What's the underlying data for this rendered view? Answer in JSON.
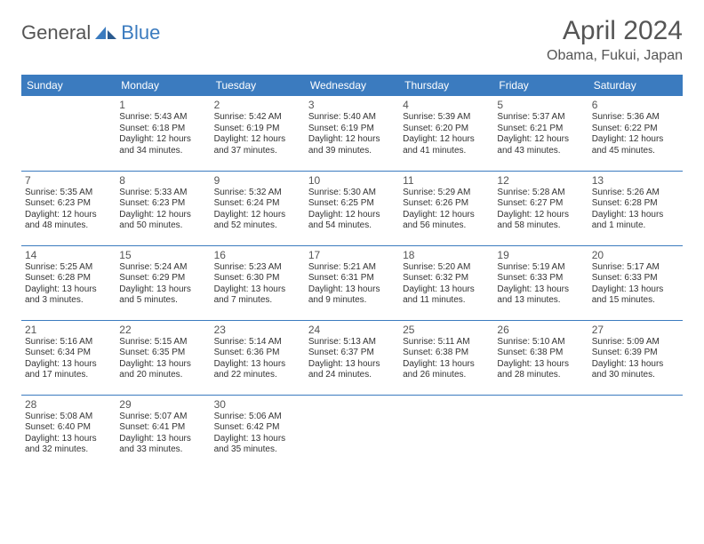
{
  "brand": {
    "part1": "General",
    "part2": "Blue"
  },
  "title": "April 2024",
  "location": "Obama, Fukui, Japan",
  "colors": {
    "header_bg": "#3b7bbf",
    "header_text": "#ffffff",
    "border": "#3b7bbf",
    "text": "#333333",
    "title_color": "#555555"
  },
  "typography": {
    "title_fontsize": 30,
    "location_fontsize": 16,
    "header_fontsize": 12,
    "daynum_fontsize": 12,
    "info_fontsize": 10
  },
  "weekdays": [
    "Sunday",
    "Monday",
    "Tuesday",
    "Wednesday",
    "Thursday",
    "Friday",
    "Saturday"
  ],
  "weeks": [
    [
      null,
      {
        "n": "1",
        "sr": "5:43 AM",
        "ss": "6:18 PM",
        "dl": "12 hours and 34 minutes."
      },
      {
        "n": "2",
        "sr": "5:42 AM",
        "ss": "6:19 PM",
        "dl": "12 hours and 37 minutes."
      },
      {
        "n": "3",
        "sr": "5:40 AM",
        "ss": "6:19 PM",
        "dl": "12 hours and 39 minutes."
      },
      {
        "n": "4",
        "sr": "5:39 AM",
        "ss": "6:20 PM",
        "dl": "12 hours and 41 minutes."
      },
      {
        "n": "5",
        "sr": "5:37 AM",
        "ss": "6:21 PM",
        "dl": "12 hours and 43 minutes."
      },
      {
        "n": "6",
        "sr": "5:36 AM",
        "ss": "6:22 PM",
        "dl": "12 hours and 45 minutes."
      }
    ],
    [
      {
        "n": "7",
        "sr": "5:35 AM",
        "ss": "6:23 PM",
        "dl": "12 hours and 48 minutes."
      },
      {
        "n": "8",
        "sr": "5:33 AM",
        "ss": "6:23 PM",
        "dl": "12 hours and 50 minutes."
      },
      {
        "n": "9",
        "sr": "5:32 AM",
        "ss": "6:24 PM",
        "dl": "12 hours and 52 minutes."
      },
      {
        "n": "10",
        "sr": "5:30 AM",
        "ss": "6:25 PM",
        "dl": "12 hours and 54 minutes."
      },
      {
        "n": "11",
        "sr": "5:29 AM",
        "ss": "6:26 PM",
        "dl": "12 hours and 56 minutes."
      },
      {
        "n": "12",
        "sr": "5:28 AM",
        "ss": "6:27 PM",
        "dl": "12 hours and 58 minutes."
      },
      {
        "n": "13",
        "sr": "5:26 AM",
        "ss": "6:28 PM",
        "dl": "13 hours and 1 minute."
      }
    ],
    [
      {
        "n": "14",
        "sr": "5:25 AM",
        "ss": "6:28 PM",
        "dl": "13 hours and 3 minutes."
      },
      {
        "n": "15",
        "sr": "5:24 AM",
        "ss": "6:29 PM",
        "dl": "13 hours and 5 minutes."
      },
      {
        "n": "16",
        "sr": "5:23 AM",
        "ss": "6:30 PM",
        "dl": "13 hours and 7 minutes."
      },
      {
        "n": "17",
        "sr": "5:21 AM",
        "ss": "6:31 PM",
        "dl": "13 hours and 9 minutes."
      },
      {
        "n": "18",
        "sr": "5:20 AM",
        "ss": "6:32 PM",
        "dl": "13 hours and 11 minutes."
      },
      {
        "n": "19",
        "sr": "5:19 AM",
        "ss": "6:33 PM",
        "dl": "13 hours and 13 minutes."
      },
      {
        "n": "20",
        "sr": "5:17 AM",
        "ss": "6:33 PM",
        "dl": "13 hours and 15 minutes."
      }
    ],
    [
      {
        "n": "21",
        "sr": "5:16 AM",
        "ss": "6:34 PM",
        "dl": "13 hours and 17 minutes."
      },
      {
        "n": "22",
        "sr": "5:15 AM",
        "ss": "6:35 PM",
        "dl": "13 hours and 20 minutes."
      },
      {
        "n": "23",
        "sr": "5:14 AM",
        "ss": "6:36 PM",
        "dl": "13 hours and 22 minutes."
      },
      {
        "n": "24",
        "sr": "5:13 AM",
        "ss": "6:37 PM",
        "dl": "13 hours and 24 minutes."
      },
      {
        "n": "25",
        "sr": "5:11 AM",
        "ss": "6:38 PM",
        "dl": "13 hours and 26 minutes."
      },
      {
        "n": "26",
        "sr": "5:10 AM",
        "ss": "6:38 PM",
        "dl": "13 hours and 28 minutes."
      },
      {
        "n": "27",
        "sr": "5:09 AM",
        "ss": "6:39 PM",
        "dl": "13 hours and 30 minutes."
      }
    ],
    [
      {
        "n": "28",
        "sr": "5:08 AM",
        "ss": "6:40 PM",
        "dl": "13 hours and 32 minutes."
      },
      {
        "n": "29",
        "sr": "5:07 AM",
        "ss": "6:41 PM",
        "dl": "13 hours and 33 minutes."
      },
      {
        "n": "30",
        "sr": "5:06 AM",
        "ss": "6:42 PM",
        "dl": "13 hours and 35 minutes."
      },
      null,
      null,
      null,
      null
    ]
  ],
  "labels": {
    "sunrise": "Sunrise:",
    "sunset": "Sunset:",
    "daylight": "Daylight:"
  }
}
